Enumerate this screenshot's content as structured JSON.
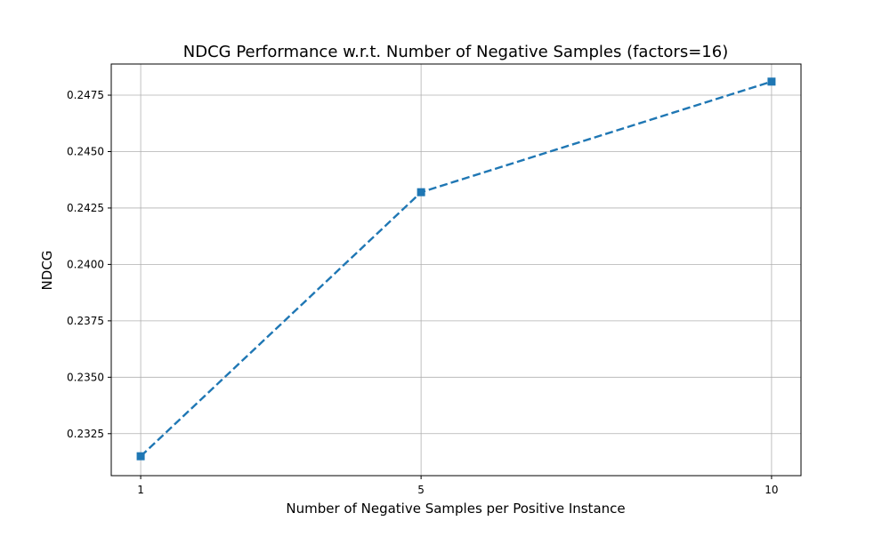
{
  "chart_data": {
    "type": "line",
    "title": "NDCG Performance w.r.t. Number of Negative Samples (factors=16)",
    "xlabel": "Number of Negative Samples per Positive Instance",
    "ylabel": "NDCG",
    "x": [
      1,
      5,
      10
    ],
    "x_tick_labels": [
      "1",
      "5",
      "10"
    ],
    "xlim": [
      0.58,
      10.42
    ],
    "ylim": [
      0.23064,
      0.24888
    ],
    "y_ticks": [
      0.2325,
      0.235,
      0.2375,
      0.24,
      0.2425,
      0.245,
      0.2475
    ],
    "y_tick_labels": [
      "0.2325",
      "0.2350",
      "0.2375",
      "0.2400",
      "0.2425",
      "0.2450",
      "0.2475"
    ],
    "series": [
      {
        "values": [
          0.2315,
          0.2432,
          0.2481
        ],
        "color": "#1f77b4",
        "line_style": "dashed",
        "marker": "square"
      }
    ],
    "grid": true,
    "legend": "none"
  }
}
